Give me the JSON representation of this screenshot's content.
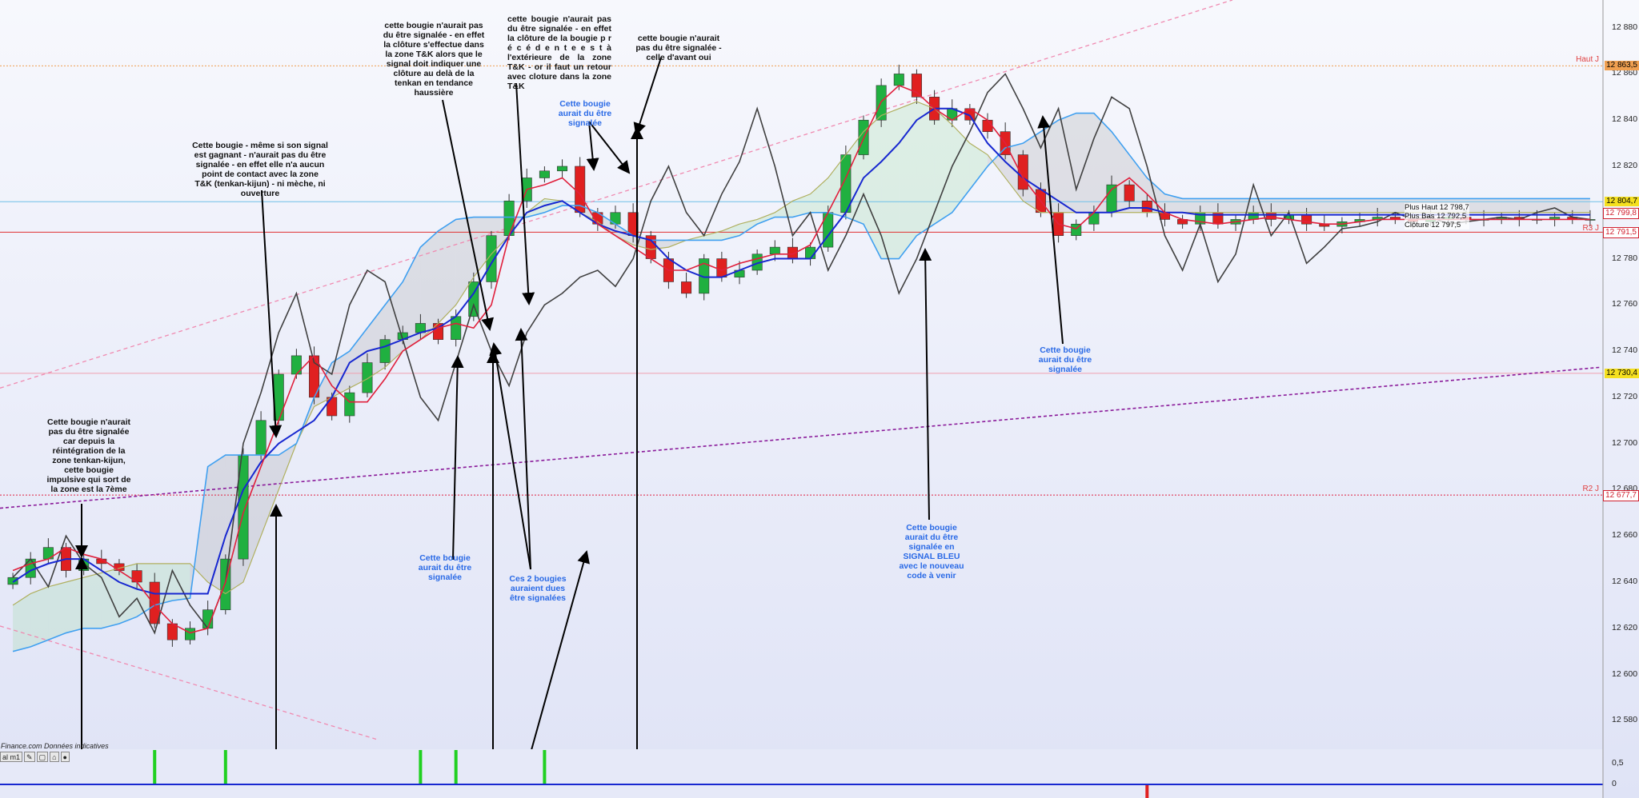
{
  "chart_data": {
    "type": "candlestick",
    "ylim": [
      12568,
      12892
    ],
    "y_ticks": [
      "12 880",
      "12 860",
      "12 840",
      "12 820",
      "12 800",
      "12 780",
      "12 760",
      "12 740",
      "12 720",
      "12 700",
      "12 680",
      "12 660",
      "12 640",
      "12 620",
      "12 600",
      "12 580"
    ],
    "y_tick_values": [
      12880,
      12860,
      12840,
      12820,
      12800,
      12780,
      12760,
      12740,
      12720,
      12700,
      12680,
      12660,
      12640,
      12620,
      12600,
      12580
    ],
    "price_labels": [
      {
        "text": "12 863,5",
        "value": 12863.5,
        "color": "#f0a050"
      },
      {
        "text": "12 804,7",
        "value": 12804.7,
        "color": "#f5e020"
      },
      {
        "text": "12 799,8",
        "value": 12799.8,
        "color": "#ffffff"
      },
      {
        "text": "12 791,5",
        "value": 12791.5,
        "color": "#ffffff"
      },
      {
        "text": "12 730,4",
        "value": 12730.4,
        "color": "#f5e020"
      },
      {
        "text": "12 677,7",
        "value": 12677.7,
        "color": "#ffffff"
      }
    ],
    "level_tags": [
      {
        "text": "Haut J",
        "value": 12866
      },
      {
        "text": "R3 J",
        "value": 12793
      },
      {
        "text": "R2 J",
        "value": 12680
      }
    ],
    "ohlc_box": {
      "high_label": "Plus Haut",
      "high": "12 798,7",
      "low_label": "Plus Bas",
      "low": "12 792,5",
      "close_label": "Clôture",
      "close": "12 797,5"
    },
    "series_colors": {
      "tenkan": "#e0203c",
      "kijun": "#1828d0",
      "chikou": "#404040",
      "ssa": "#b0b060",
      "ssb": "#40a0f0",
      "bull": "#20b040",
      "bear": "#e02020"
    },
    "horizontal_lines": [
      {
        "value": 12863.5,
        "color": "#f0a050",
        "style": "dotted"
      },
      {
        "value": 12804.7,
        "color": "#70c0e8",
        "style": "solid"
      },
      {
        "value": 12791.5,
        "color": "#e03030",
        "style": "solid"
      },
      {
        "value": 12730.4,
        "color": "#f0a0b0",
        "style": "solid"
      },
      {
        "value": 12677.7,
        "color": "#e02040",
        "style": "dotted"
      }
    ],
    "chikou": [
      12642,
      12650,
      12638,
      12660,
      12648,
      12642,
      12625,
      12633,
      12618,
      12645,
      12630,
      12620,
      12640,
      12700,
      12722,
      12748,
      12765,
      12735,
      12730,
      12760,
      12775,
      12770,
      12745,
      12720,
      12710,
      12735,
      12760,
      12740,
      12725,
      12748,
      12760,
      12765,
      12772,
      12775,
      12768,
      12780,
      12805,
      12820,
      12800,
      12790,
      12808,
      12822,
      12845,
      12820,
      12790,
      12800,
      12775,
      12790,
      12808,
      12790,
      12765,
      12780,
      12800,
      12820,
      12835,
      12852,
      12860,
      12845,
      12828,
      12845,
      12810,
      12832,
      12850,
      12845,
      12820,
      12790,
      12775,
      12795,
      12770,
      12782,
      12812,
      12790,
      12800,
      12778,
      12785,
      12793,
      12794,
      12796,
      12800,
      12797,
      12798,
      12795,
      12796,
      12797,
      12798,
      12797,
      12800,
      12802,
      12798,
      12797
    ],
    "tenkan": [
      12645,
      12648,
      12650,
      12655,
      12652,
      12650,
      12645,
      12640,
      12630,
      12622,
      12618,
      12620,
      12640,
      12670,
      12690,
      12710,
      12730,
      12738,
      12725,
      12718,
      12718,
      12728,
      12740,
      12745,
      12750,
      12752,
      12750,
      12760,
      12790,
      12810,
      12812,
      12815,
      12808,
      12795,
      12790,
      12785,
      12780,
      12775,
      12775,
      12778,
      12775,
      12778,
      12780,
      12782,
      12782,
      12786,
      12800,
      12815,
      12832,
      12848,
      12855,
      12852,
      12845,
      12840,
      12845,
      12840,
      12830,
      12815,
      12805,
      12795,
      12793,
      12800,
      12810,
      12815,
      12808,
      12800,
      12797,
      12796,
      12795,
      12796,
      12797,
      12798,
      12797,
      12796,
      12795,
      12795,
      12796,
      12797,
      12797,
      12797,
      12797,
      12797,
      12797,
      12797,
      12797,
      12797,
      12797,
      12797,
      12797,
      12797
    ],
    "kijun": [
      12640,
      12645,
      12648,
      12650,
      12650,
      12645,
      12640,
      12637,
      12635,
      12635,
      12635,
      12635,
      12660,
      12680,
      12692,
      12700,
      12705,
      12710,
      12720,
      12735,
      12740,
      12742,
      12745,
      12748,
      12750,
      12755,
      12765,
      12778,
      12790,
      12800,
      12803,
      12805,
      12800,
      12795,
      12792,
      12790,
      12788,
      12780,
      12775,
      12772,
      12772,
      12775,
      12778,
      12780,
      12780,
      12780,
      12790,
      12800,
      12815,
      12822,
      12830,
      12840,
      12845,
      12845,
      12842,
      12830,
      12822,
      12815,
      12810,
      12805,
      12800,
      12800,
      12800,
      12802,
      12802,
      12800,
      12800,
      12799,
      12799,
      12799,
      12799,
      12799,
      12799,
      12799,
      12799,
      12799,
      12799,
      12799,
      12799,
      12799,
      12799,
      12799,
      12799,
      12799,
      12799,
      12799,
      12799,
      12799,
      12799,
      12799
    ],
    "ssa": [
      12630,
      12635,
      12638,
      12640,
      12642,
      12644,
      12646,
      12648,
      12648,
      12648,
      12648,
      12640,
      12635,
      12640,
      12660,
      12680,
      12700,
      12716,
      12720,
      12724,
      12728,
      12733,
      12740,
      12745,
      12752,
      12760,
      12772,
      12782,
      12790,
      12800,
      12806,
      12805,
      12800,
      12796,
      12790,
      12786,
      12784,
      12785,
      12788,
      12790,
      12792,
      12795,
      12797,
      12800,
      12805,
      12808,
      12815,
      12825,
      12835,
      12842,
      12845,
      12848,
      12845,
      12838,
      12830,
      12825,
      12815,
      12805,
      12800,
      12800,
      12800,
      12800,
      12800,
      12800,
      12800,
      12800,
      12800,
      12800,
      12800,
      12800,
      12800,
      12800,
      12800,
      12800,
      12800,
      12800,
      12800,
      12800,
      12800,
      12800,
      12800,
      12800,
      12800,
      12800,
      12800,
      12800,
      12800,
      12800,
      12800,
      12800
    ],
    "ssb": [
      12610,
      12612,
      12615,
      12618,
      12620,
      12620,
      12622,
      12625,
      12630,
      12632,
      12633,
      12690,
      12695,
      12695,
      12695,
      12695,
      12700,
      12720,
      12735,
      12740,
      12750,
      12760,
      12770,
      12785,
      12792,
      12797,
      12798,
      12798,
      12798,
      12798,
      12800,
      12803,
      12803,
      12800,
      12795,
      12790,
      12788,
      12788,
      12788,
      12788,
      12788,
      12790,
      12795,
      12798,
      12798,
      12800,
      12800,
      12798,
      12795,
      12780,
      12780,
      12790,
      12795,
      12800,
      12810,
      12820,
      12828,
      12830,
      12835,
      12840,
      12843,
      12843,
      12835,
      12825,
      12815,
      12808,
      12806,
      12806,
      12806,
      12806,
      12806,
      12806,
      12806,
      12806,
      12806,
      12806,
      12806,
      12806,
      12806,
      12806,
      12806,
      12806,
      12806,
      12806,
      12806,
      12806,
      12806,
      12806,
      12806,
      12806
    ],
    "close": [
      12642,
      12650,
      12655,
      12645,
      12650,
      12648,
      12645,
      12640,
      12622,
      12615,
      12620,
      12628,
      12650,
      12695,
      12710,
      12730,
      12738,
      12720,
      12712,
      12722,
      12735,
      12745,
      12748,
      12752,
      12745,
      12755,
      12770,
      12790,
      12805,
      12815,
      12818,
      12820,
      12800,
      12795,
      12800,
      12790,
      12780,
      12770,
      12765,
      12780,
      12772,
      12775,
      12782,
      12785,
      12780,
      12785,
      12800,
      12825,
      12840,
      12855,
      12860,
      12850,
      12840,
      12845,
      12840,
      12835,
      12825,
      12810,
      12800,
      12790,
      12795,
      12800,
      12812,
      12805,
      12800,
      12797,
      12795,
      12800,
      12795,
      12797,
      12800,
      12797,
      12799,
      12795,
      12794,
      12796,
      12797,
      12798,
      12797,
      12796,
      12797,
      12798,
      12797,
      12797,
      12798,
      12797,
      12797,
      12798,
      12797,
      12797
    ],
    "signals": [
      {
        "candle_index": 8,
        "color": "#20d020"
      },
      {
        "candle_index": 12,
        "color": "#20d020"
      },
      {
        "candle_index": 23,
        "color": "#20d020"
      },
      {
        "candle_index": 25,
        "color": "#20d020"
      },
      {
        "candle_index": 30,
        "color": "#20d020"
      },
      {
        "candle_index": 64,
        "color": "#e02020"
      }
    ],
    "indicator_ticks": [
      "0,5",
      "0"
    ],
    "title": "",
    "xlabel": "",
    "ylabel": "",
    "grid": false,
    "legend": "none"
  },
  "annotations": [
    {
      "text": "Cette bougie n'aurait pas du être signalée car depuis la réintégration de la zone tenkan-kijun, cette bougie impulsive qui sort de la zone est la 7ème",
      "color": "black"
    },
    {
      "text": "Cette  bougie - même si son signal est gagnant - n'aurait pas du être signalée - en effet elle n'a aucun point de contact avec la zone T&K (tenkan-kijun) - ni mèche, ni ouverture",
      "color": "black"
    },
    {
      "text": "cette bougie n'aurait pas du être signalée - en effet la clôture s'effectue dans la zone T&K alors que le signal doit indiquer une clôture au delà de la tenkan en tendance haussière",
      "color": "black"
    },
    {
      "text": "cette  bougie  n'aurait  pas du être signalée - en effet la  clôture  de  la  bougie p r é c é d e n t e  e s t  à l'extérieure de la zone T&K - or  il faut un retour avec cloture dans la zone T&K",
      "color": "black"
    },
    {
      "text": "cette bougie n'aurait pas du être signalée - celle d'avant oui",
      "color": "black"
    },
    {
      "text": "Cette bougie aurait du être signalée",
      "color": "blue"
    },
    {
      "text": "Cette bougie aurait du être signalée",
      "color": "blue"
    },
    {
      "text": "Ces 2 bougies auraient dues être signalées",
      "color": "blue"
    },
    {
      "text": "Cette bougie aurait du être signalée",
      "color": "blue"
    },
    {
      "text": "Cette bougie aurait du être signalée en SIGNAL BLEU avec le nouveau code à venir",
      "color": "blue"
    }
  ],
  "source_text": "Finance.com  Données indicatives",
  "toolbar_label": "al m1"
}
